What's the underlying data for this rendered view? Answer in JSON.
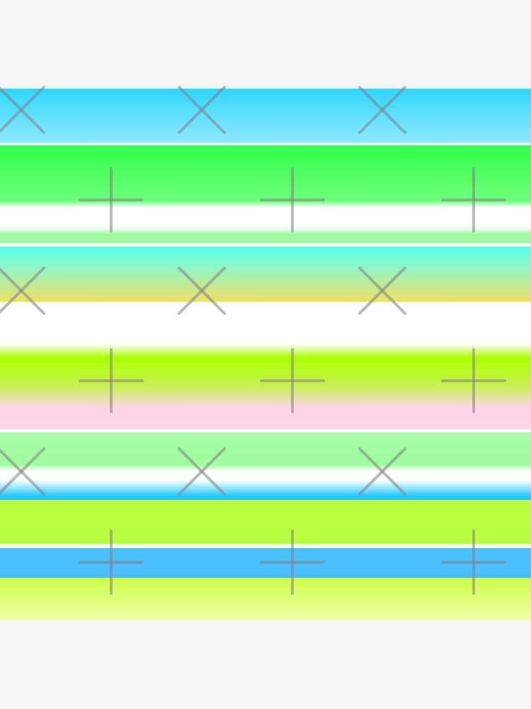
{
  "image": {
    "type": "striped-gradient-pattern",
    "background_color": "#f6f6f6",
    "stripe_colors": [
      "#2fd6ff",
      "#33ff4d",
      "#ffffff",
      "#a3f7a3",
      "#55ffee",
      "#f0e066",
      "#aaff00",
      "#ffd8ea",
      "#a6ffa6",
      "#22c8ff",
      "#b8ff44",
      "#4cc0ff",
      "#ccff44"
    ],
    "watermark": {
      "icons": [
        "x-mark-icon",
        "plus-mark-icon"
      ],
      "color": "#808080"
    }
  }
}
